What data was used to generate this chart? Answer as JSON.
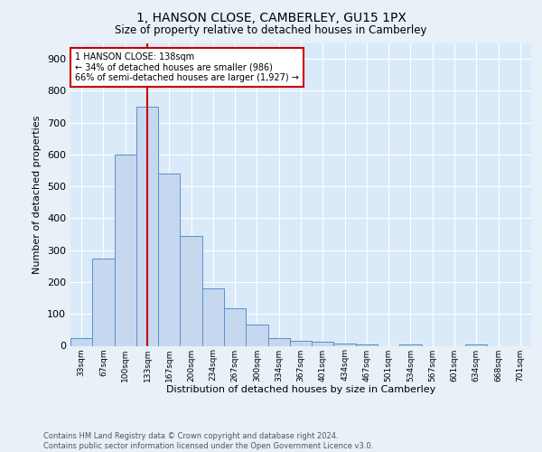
{
  "title_line1": "1, HANSON CLOSE, CAMBERLEY, GU15 1PX",
  "title_line2": "Size of property relative to detached houses in Camberley",
  "xlabel": "Distribution of detached houses by size in Camberley",
  "ylabel": "Number of detached properties",
  "bar_labels": [
    "33sqm",
    "67sqm",
    "100sqm",
    "133sqm",
    "167sqm",
    "200sqm",
    "234sqm",
    "267sqm",
    "300sqm",
    "334sqm",
    "367sqm",
    "401sqm",
    "434sqm",
    "467sqm",
    "501sqm",
    "534sqm",
    "567sqm",
    "601sqm",
    "634sqm",
    "668sqm",
    "701sqm"
  ],
  "bar_values": [
    25,
    275,
    600,
    750,
    540,
    345,
    180,
    118,
    68,
    25,
    15,
    14,
    8,
    5,
    0,
    5,
    0,
    0,
    5,
    0,
    0
  ],
  "bar_color": "#c5d8f0",
  "bar_edge_color": "#5b8fc9",
  "background_color": "#daeaf8",
  "fig_background_color": "#e8f0f8",
  "grid_color": "#ffffff",
  "vline_x": 3,
  "vline_color": "#cc0000",
  "annotation_text": "1 HANSON CLOSE: 138sqm\n← 34% of detached houses are smaller (986)\n66% of semi-detached houses are larger (1,927) →",
  "annotation_box_color": "#ffffff",
  "annotation_box_edge": "#cc0000",
  "footer_line1": "Contains HM Land Registry data © Crown copyright and database right 2024.",
  "footer_line2": "Contains public sector information licensed under the Open Government Licence v3.0.",
  "ylim": [
    0,
    950
  ],
  "yticks": [
    0,
    100,
    200,
    300,
    400,
    500,
    600,
    700,
    800,
    900
  ]
}
